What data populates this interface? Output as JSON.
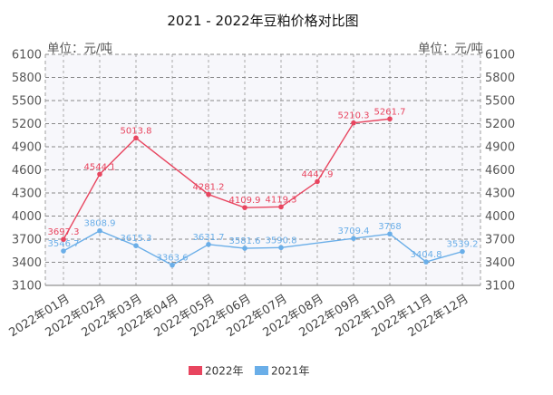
{
  "chart_data": {
    "type": "line",
    "title": "2021 - 2022年豆粕价格对比图",
    "unit_left": "单位：元/吨",
    "unit_right": "单位：元/吨",
    "categories": [
      "2022年01月",
      "2022年02月",
      "2022年03月",
      "2022年04月",
      "2022年05月",
      "2022年06月",
      "2022年07月",
      "2022年08月",
      "2022年09月",
      "2022年10月",
      "2022年11月",
      "2022年12月"
    ],
    "ylim": [
      3100,
      6100
    ],
    "yticks": [
      3100,
      3400,
      3700,
      4000,
      4300,
      4600,
      4900,
      5200,
      5500,
      5800,
      6100
    ],
    "grid": true,
    "legend_position": "bottom",
    "series": [
      {
        "name": "2022年",
        "color": "#e8455f",
        "values": [
          3697.3,
          4544.1,
          5013.8,
          null,
          4281.2,
          4109.9,
          4119.3,
          4447.9,
          5210.3,
          5261.7,
          null,
          null
        ],
        "labels": [
          "3697.3",
          "4544.1",
          "5013.8",
          "",
          "4281.2",
          "4109.9",
          "4119.3",
          "4447.9",
          "5210.3",
          "5261.7",
          "",
          ""
        ]
      },
      {
        "name": "2021年",
        "color": "#6aaee8",
        "values": [
          3546.7,
          3808.9,
          3615.3,
          3363.6,
          3631.7,
          3581.6,
          3590.8,
          null,
          3709.4,
          3768,
          3404.8,
          3539.2
        ],
        "labels": [
          "3546.7",
          "3808.9",
          "3615.3",
          "3363.6",
          "3631.7",
          "3581.6",
          "3590.8",
          "",
          "3709.4",
          "3768",
          "3404.8",
          "3539.2"
        ]
      }
    ]
  }
}
